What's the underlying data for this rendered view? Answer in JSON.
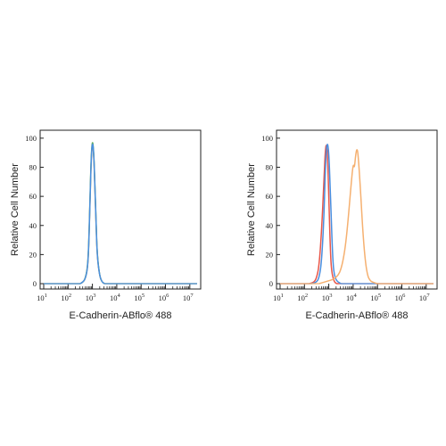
{
  "chart_data": [
    {
      "type": "line",
      "xlabel": "E-Cadherin-ABflo® 488",
      "ylabel": "Relative Cell Number",
      "xscale": "log",
      "x_tick_labels": [
        "10^1",
        "10^2",
        "10^3",
        "10^4",
        "10^5",
        "10^6",
        "10^7"
      ],
      "y_tick_labels": [
        "0",
        "20",
        "40",
        "60",
        "80",
        "100"
      ],
      "xlim": [
        1,
        7.3
      ],
      "ylim": [
        0,
        103
      ],
      "grid": false,
      "legend": "none",
      "series": [
        {
          "color": "#f5a35a",
          "peak_x": [
            3.0
          ],
          "peak_y": [
            97
          ],
          "x": [
            2.5,
            2.6,
            2.7,
            2.8,
            2.85,
            2.9,
            2.95,
            3.0,
            3.05,
            3.1,
            3.15,
            3.2,
            3.3,
            3.4,
            3.5
          ],
          "y": [
            0,
            1,
            3,
            10,
            25,
            55,
            85,
            97,
            90,
            68,
            40,
            18,
            5,
            1,
            0
          ]
        },
        {
          "color": "#5fae62",
          "x": [
            2.5,
            2.6,
            2.7,
            2.8,
            2.85,
            2.9,
            2.95,
            3.0,
            3.05,
            3.1,
            3.15,
            3.2,
            3.3,
            3.4,
            3.5
          ],
          "y": [
            0,
            1,
            3,
            11,
            27,
            58,
            88,
            99,
            92,
            70,
            42,
            19,
            5,
            1,
            0
          ]
        },
        {
          "color": "#4a8fe0",
          "x": [
            2.5,
            2.6,
            2.7,
            2.8,
            2.85,
            2.9,
            2.95,
            3.0,
            3.05,
            3.1,
            3.15,
            3.2,
            3.3,
            3.4,
            3.5
          ],
          "y": [
            0,
            1,
            3,
            10,
            26,
            56,
            86,
            98,
            91,
            69,
            41,
            18,
            5,
            1,
            0
          ]
        }
      ]
    },
    {
      "type": "line",
      "xlabel": "E-Cadherin-ABflo® 488",
      "ylabel": "Relative Cell Number",
      "xscale": "log",
      "x_tick_labels": [
        "10^1",
        "10^2",
        "10^3",
        "10^4",
        "10^5",
        "10^6",
        "10^7"
      ],
      "y_tick_labels": [
        "0",
        "20",
        "40",
        "60",
        "80",
        "100"
      ],
      "xlim": [
        1,
        7.3
      ],
      "ylim": [
        0,
        103
      ],
      "grid": false,
      "legend": "none",
      "series": [
        {
          "color": "#e8574a",
          "x": [
            2.2,
            2.4,
            2.5,
            2.6,
            2.7,
            2.8,
            2.85,
            2.9,
            2.95,
            3.0,
            3.05,
            3.1,
            3.2,
            3.3,
            3.4
          ],
          "y": [
            0,
            1,
            4,
            12,
            35,
            70,
            90,
            97,
            88,
            60,
            30,
            10,
            2,
            0,
            0
          ]
        },
        {
          "color": "#4a8fe0",
          "x": [
            2.3,
            2.5,
            2.6,
            2.7,
            2.8,
            2.85,
            2.9,
            2.95,
            3.0,
            3.05,
            3.1,
            3.15,
            3.2,
            3.3,
            3.5
          ],
          "y": [
            0,
            1,
            4,
            14,
            45,
            75,
            93,
            97,
            90,
            70,
            45,
            22,
            8,
            2,
            0
          ]
        },
        {
          "color": "#f5b070",
          "x": [
            2.6,
            2.8,
            3.0,
            3.2,
            3.4,
            3.5,
            3.6,
            3.7,
            3.8,
            3.9,
            4.0,
            4.05,
            4.1,
            4.15,
            4.2,
            4.3,
            4.4,
            4.5,
            4.6,
            4.7,
            4.8,
            5.0
          ],
          "y": [
            0,
            1,
            2,
            3,
            6,
            10,
            17,
            28,
            45,
            65,
            83,
            79,
            88,
            93,
            90,
            65,
            35,
            15,
            5,
            2,
            1,
            0
          ]
        }
      ]
    }
  ]
}
